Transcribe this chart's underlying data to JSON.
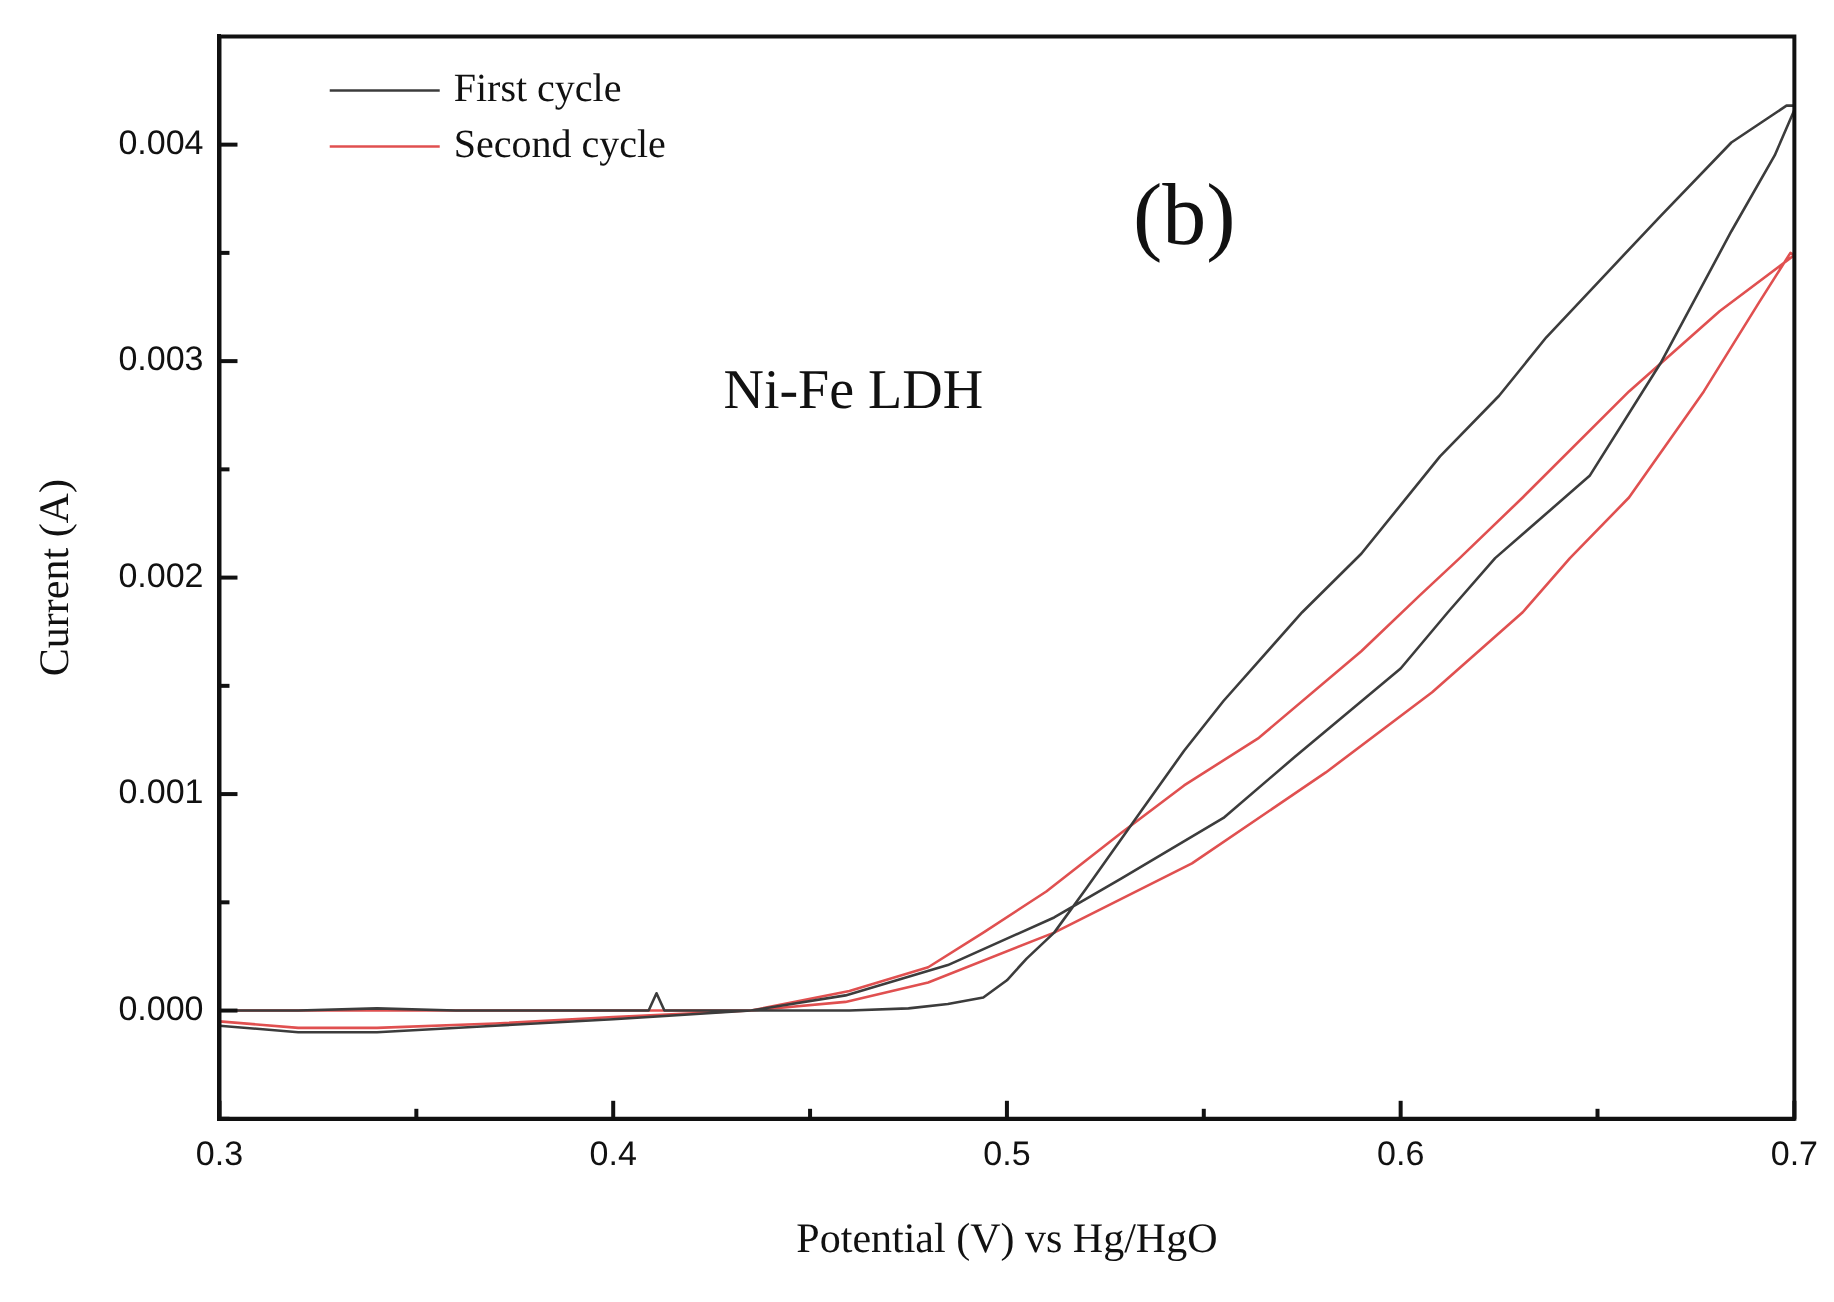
{
  "chart_data": {
    "type": "line",
    "xlabel": "Potential (V) vs Hg/HgO",
    "ylabel": "Current (A)",
    "annotations": [
      "(b)",
      "Ni-Fe LDH"
    ],
    "xlim": [
      0.3,
      0.7
    ],
    "xticks": [
      0.3,
      {
        "value": 0.35,
        "label": null
      },
      0.4,
      {
        "value": 0.45,
        "label": null
      },
      0.5,
      {
        "value": 0.55,
        "label": null
      },
      0.6,
      {
        "value": 0.65,
        "label": null
      },
      0.7
    ],
    "ylim": [
      -0.0005,
      0.0045
    ],
    "yticks": [
      {
        "value": -0.0005,
        "label": null
      },
      {
        "value": 0,
        "label": "0.000"
      },
      {
        "value": 0.0005,
        "label": null
      },
      {
        "value": 0.001,
        "label": "0.001"
      },
      {
        "value": 0.0015,
        "label": null
      },
      {
        "value": 0.002,
        "label": "0.002"
      },
      {
        "value": 0.0025,
        "label": null
      },
      {
        "value": 0.003,
        "label": "0.003"
      },
      {
        "value": 0.0035,
        "label": null
      },
      {
        "value": 0.004,
        "label": "0.004"
      }
    ],
    "grid": false,
    "legend": "top left",
    "marker": "none",
    "line_style": "solid",
    "series": [
      {
        "name": "First cycle",
        "color": "#3c3c3c",
        "x": [
          0.3,
          0.32,
          0.34,
          0.36,
          0.38,
          0.4,
          0.409,
          0.411,
          0.413,
          0.44,
          0.46,
          0.475,
          0.485,
          0.494,
          0.5,
          0.505,
          0.512,
          0.52,
          0.534,
          0.545,
          0.555,
          0.575,
          0.59,
          0.61,
          0.625,
          0.637,
          0.652,
          0.666,
          0.684,
          0.698,
          0.7,
          0.7,
          0.695,
          0.684,
          0.666,
          0.648,
          0.624,
          0.612,
          0.6,
          0.573,
          0.555,
          0.529,
          0.512,
          0.485,
          0.459,
          0.435,
          0.4,
          0.37,
          0.34,
          0.32,
          0.3
        ],
        "values": [
          0,
          0,
          1e-05,
          0,
          0,
          0,
          0,
          8e-05,
          0,
          0,
          0,
          1e-05,
          3e-05,
          6e-05,
          0.00014,
          0.00024,
          0.00036,
          0.00056,
          0.00092,
          0.0012,
          0.00143,
          0.00184,
          0.00211,
          0.00256,
          0.00284,
          0.00311,
          0.0034,
          0.00367,
          0.00401,
          0.00418,
          0.00418,
          0.00416,
          0.00395,
          0.0036,
          0.00299,
          0.00247,
          0.00209,
          0.00184,
          0.00158,
          0.00117,
          0.00089,
          0.00061,
          0.00043,
          0.00021,
          7e-05,
          0,
          -4e-05,
          -7e-05,
          -0.0001,
          -0.0001,
          -7e-05
        ]
      },
      {
        "name": "Second cycle",
        "color": "#e05050",
        "x": [
          0.3,
          0.32,
          0.34,
          0.37,
          0.4,
          0.435,
          0.46,
          0.48,
          0.494,
          0.51,
          0.529,
          0.545,
          0.564,
          0.59,
          0.605,
          0.615,
          0.631,
          0.658,
          0.681,
          0.7,
          0.699,
          0.691,
          0.677,
          0.658,
          0.643,
          0.631,
          0.608,
          0.581,
          0.547,
          0.512,
          0.48,
          0.459,
          0.435,
          0.4,
          0.37,
          0.34,
          0.3
        ],
        "values": [
          -5e-05,
          -8e-05,
          -8e-05,
          -6e-05,
          -3e-05,
          0,
          9e-05,
          0.0002,
          0.00036,
          0.00055,
          0.00082,
          0.00104,
          0.00126,
          0.00166,
          0.00192,
          0.00209,
          0.00237,
          0.00286,
          0.00323,
          0.00349,
          0.0035,
          0.00327,
          0.00286,
          0.00237,
          0.00209,
          0.00184,
          0.00147,
          0.0011,
          0.00068,
          0.00036,
          0.00013,
          4e-05,
          0,
          0,
          0,
          0,
          0
        ]
      }
    ]
  }
}
